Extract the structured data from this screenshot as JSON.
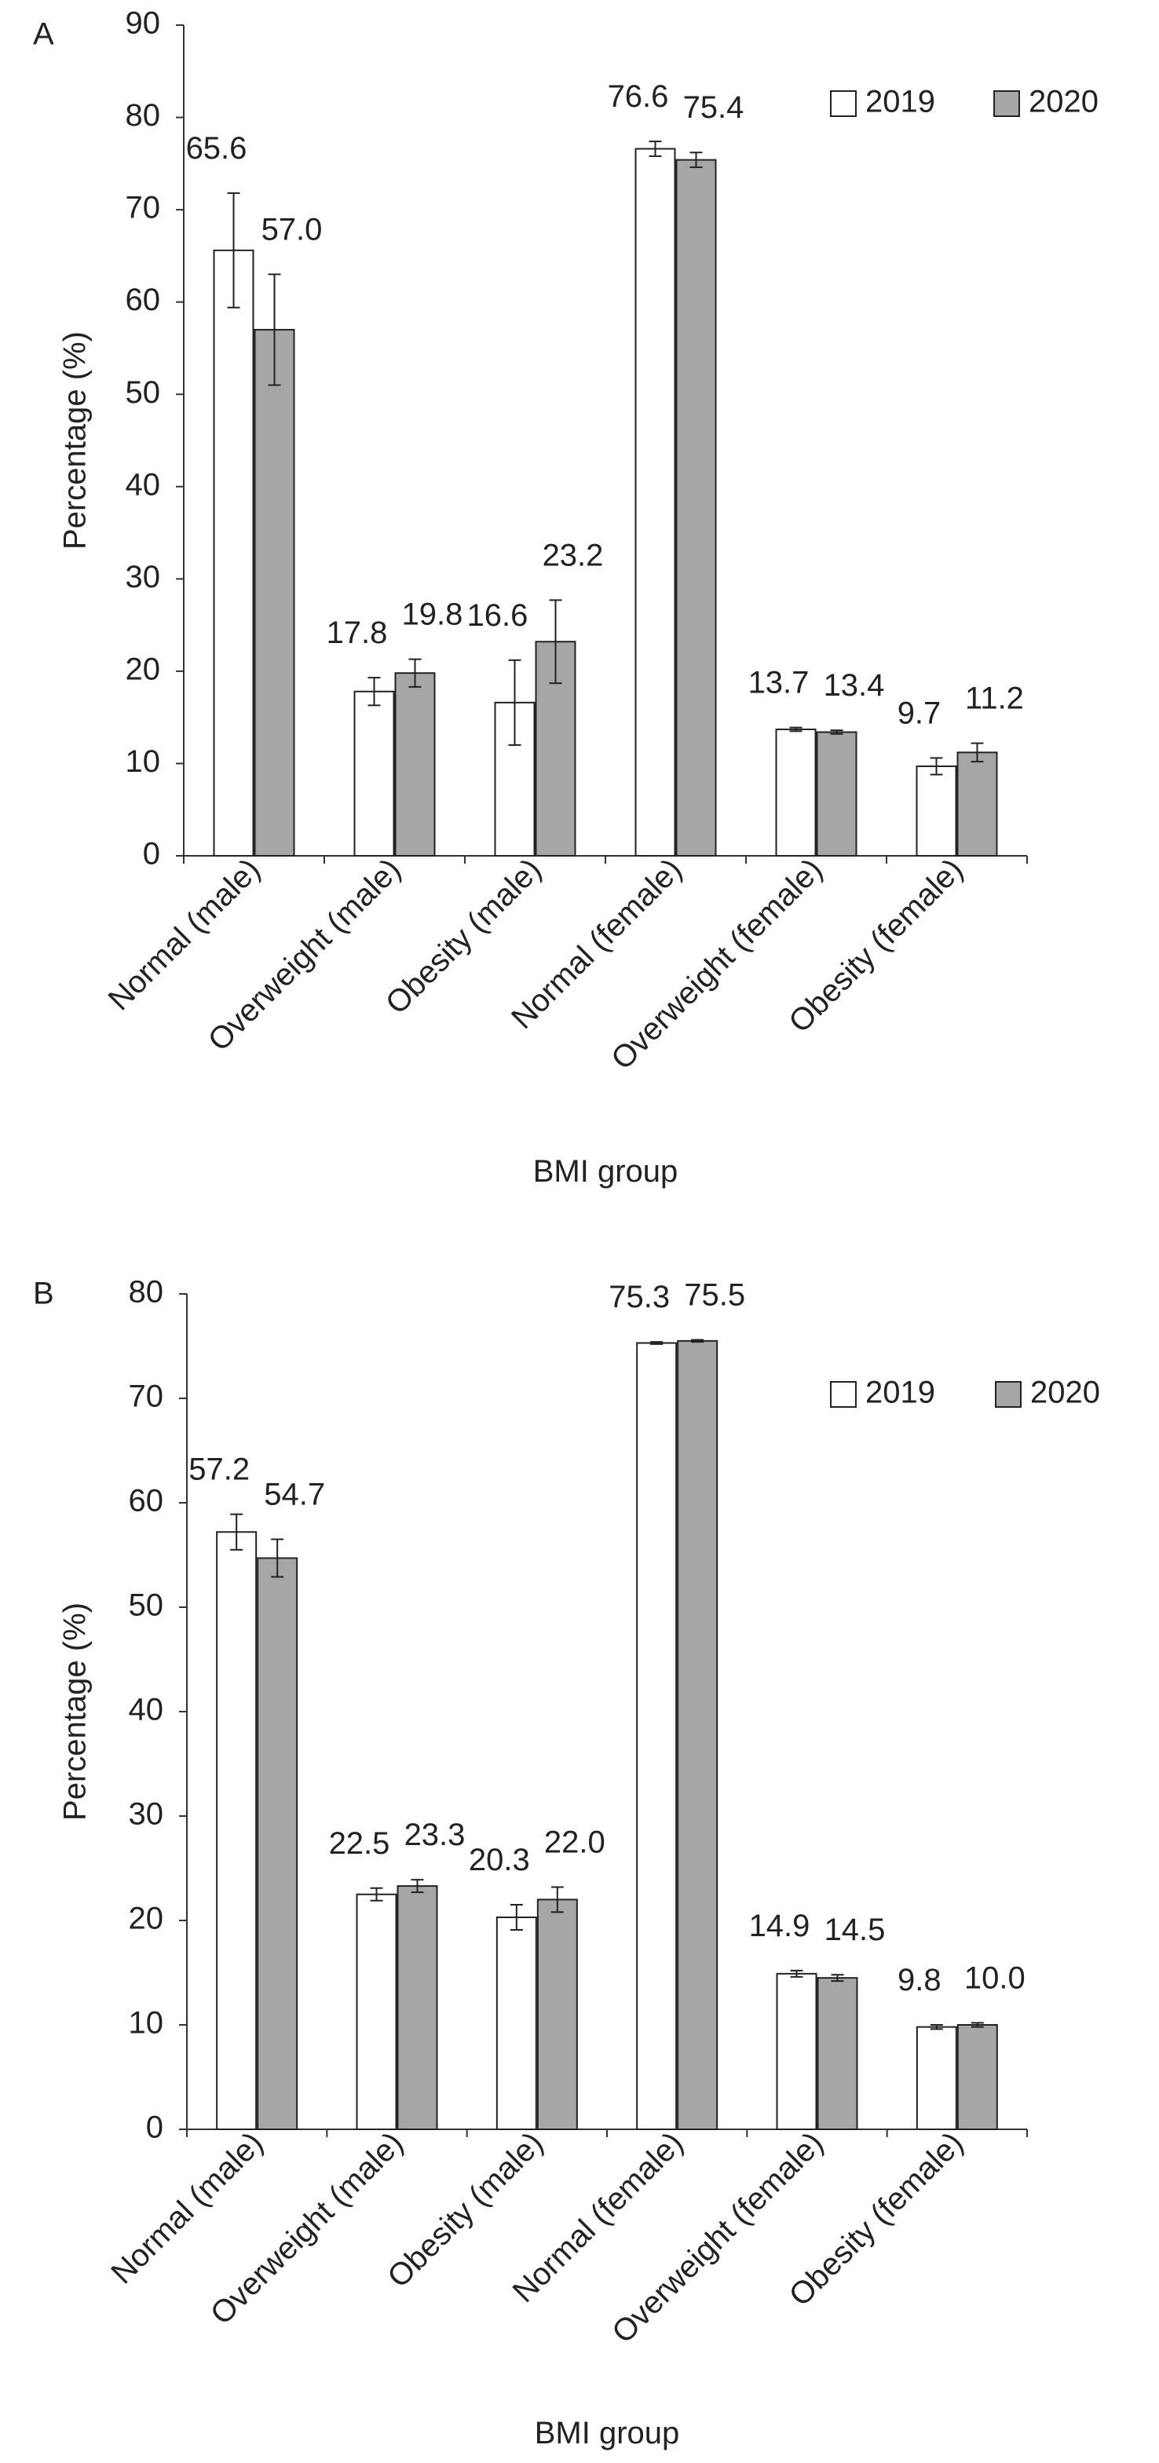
{
  "chart_data": [
    {
      "panel": "A",
      "type": "bar",
      "xlabel": "BMI group",
      "ylabel": "Percentage (%)",
      "ylim": [
        0,
        90
      ],
      "yticks": [
        0,
        10,
        20,
        30,
        40,
        50,
        60,
        70,
        80,
        90
      ],
      "grid": false,
      "legend_position": "top-right",
      "categories": [
        "Normal (male)",
        "Overweight (male)",
        "Obesity (male)",
        "Normal (female)",
        "Overweight (female)",
        "Obesity (female)"
      ],
      "series": [
        {
          "name": "2019",
          "color": "#ffffff",
          "values": [
            65.6,
            17.8,
            16.6,
            76.6,
            13.7,
            9.7
          ],
          "labels": [
            "65.6",
            "17.8",
            "16.6",
            "76.6",
            "13.7",
            "9.7"
          ],
          "error": [
            6.2,
            1.5,
            4.6,
            0.8,
            0.2,
            0.9
          ]
        },
        {
          "name": "2020",
          "color": "#a6a6a6",
          "values": [
            57.0,
            19.8,
            23.2,
            75.4,
            13.4,
            11.2
          ],
          "labels": [
            "57.0",
            "19.8",
            "23.2",
            "75.4",
            "13.4",
            "11.2"
          ],
          "error": [
            6.0,
            1.5,
            4.5,
            0.8,
            0.2,
            1.0
          ]
        }
      ]
    },
    {
      "panel": "B",
      "type": "bar",
      "xlabel": "BMI group",
      "ylabel": "Percentage (%)",
      "ylim": [
        0,
        80
      ],
      "yticks": [
        0,
        10,
        20,
        30,
        40,
        50,
        60,
        70,
        80
      ],
      "grid": false,
      "legend_position": "top-right",
      "categories": [
        "Normal (male)",
        "Overweight (male)",
        "Obesity (male)",
        "Normal (female)",
        "Overweight (female)",
        "Obesity (female)"
      ],
      "series": [
        {
          "name": "2019",
          "color": "#ffffff",
          "values": [
            57.2,
            22.5,
            20.3,
            75.3,
            14.9,
            9.8
          ],
          "labels": [
            "57.2",
            "22.5",
            "20.3",
            "75.3",
            "14.9",
            "9.8"
          ],
          "error": [
            1.7,
            0.6,
            1.2,
            0.1,
            0.3,
            0.2
          ]
        },
        {
          "name": "2020",
          "color": "#a6a6a6",
          "values": [
            54.7,
            23.3,
            22.0,
            75.5,
            14.5,
            10.0
          ],
          "labels": [
            "54.7",
            "23.3",
            "22.0",
            "75.5",
            "14.5",
            "10.0"
          ],
          "error": [
            1.8,
            0.6,
            1.2,
            0.1,
            0.3,
            0.2
          ]
        }
      ]
    }
  ]
}
